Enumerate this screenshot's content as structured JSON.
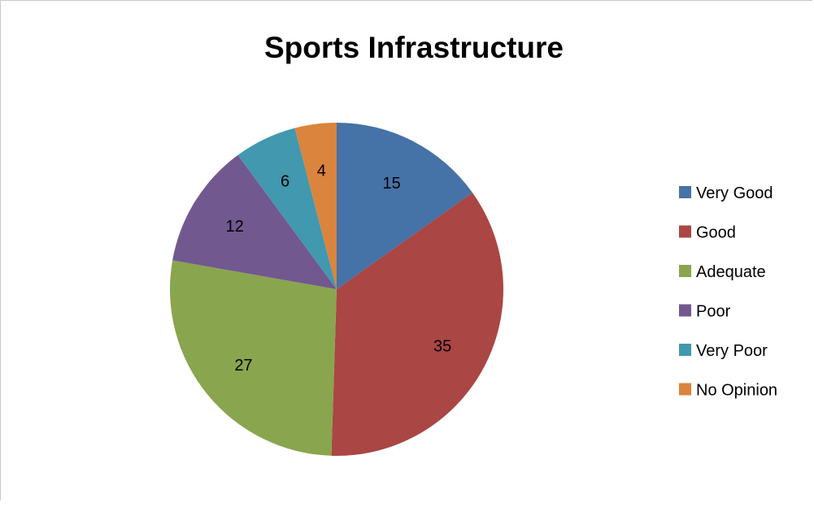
{
  "chart_data": {
    "type": "pie",
    "title": "Sports Infrastructure",
    "categories": [
      "Very Good",
      "Good",
      "Adequate",
      "Poor",
      "Very Poor",
      "No Opinion"
    ],
    "values": [
      15,
      35,
      27,
      12,
      6,
      4
    ],
    "colors": [
      "#4572a7",
      "#aa4643",
      "#89a54e",
      "#71588f",
      "#4198af",
      "#db843d"
    ],
    "legend_position": "right",
    "start_angle": "12 o'clock",
    "direction": "clockwise"
  }
}
